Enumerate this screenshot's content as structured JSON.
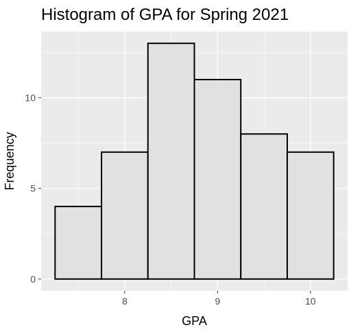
{
  "chart_data": {
    "type": "bar",
    "title": "Histogram of GPA for Spring 2021",
    "xlabel": "GPA",
    "ylabel": "Frequency",
    "bins": [
      {
        "from": 7.25,
        "to": 7.75,
        "count": 4
      },
      {
        "from": 7.75,
        "to": 8.25,
        "count": 7
      },
      {
        "from": 8.25,
        "to": 8.75,
        "count": 13
      },
      {
        "from": 8.75,
        "to": 9.25,
        "count": 11
      },
      {
        "from": 9.25,
        "to": 9.75,
        "count": 8
      },
      {
        "from": 9.75,
        "to": 10.25,
        "count": 7
      }
    ],
    "xlim": [
      7.1,
      10.4
    ],
    "ylim": [
      -0.65,
      13.65
    ],
    "x_ticks": [
      8,
      9,
      10
    ],
    "x_tick_labels": [
      "8",
      "9",
      "10"
    ],
    "y_ticks": [
      0,
      5,
      10
    ],
    "y_tick_labels": [
      "0",
      "5",
      "10"
    ],
    "grid": true,
    "panel_color": "#ebebeb",
    "bar_fill": "#e1e1e1",
    "bar_outline": "#000000"
  }
}
